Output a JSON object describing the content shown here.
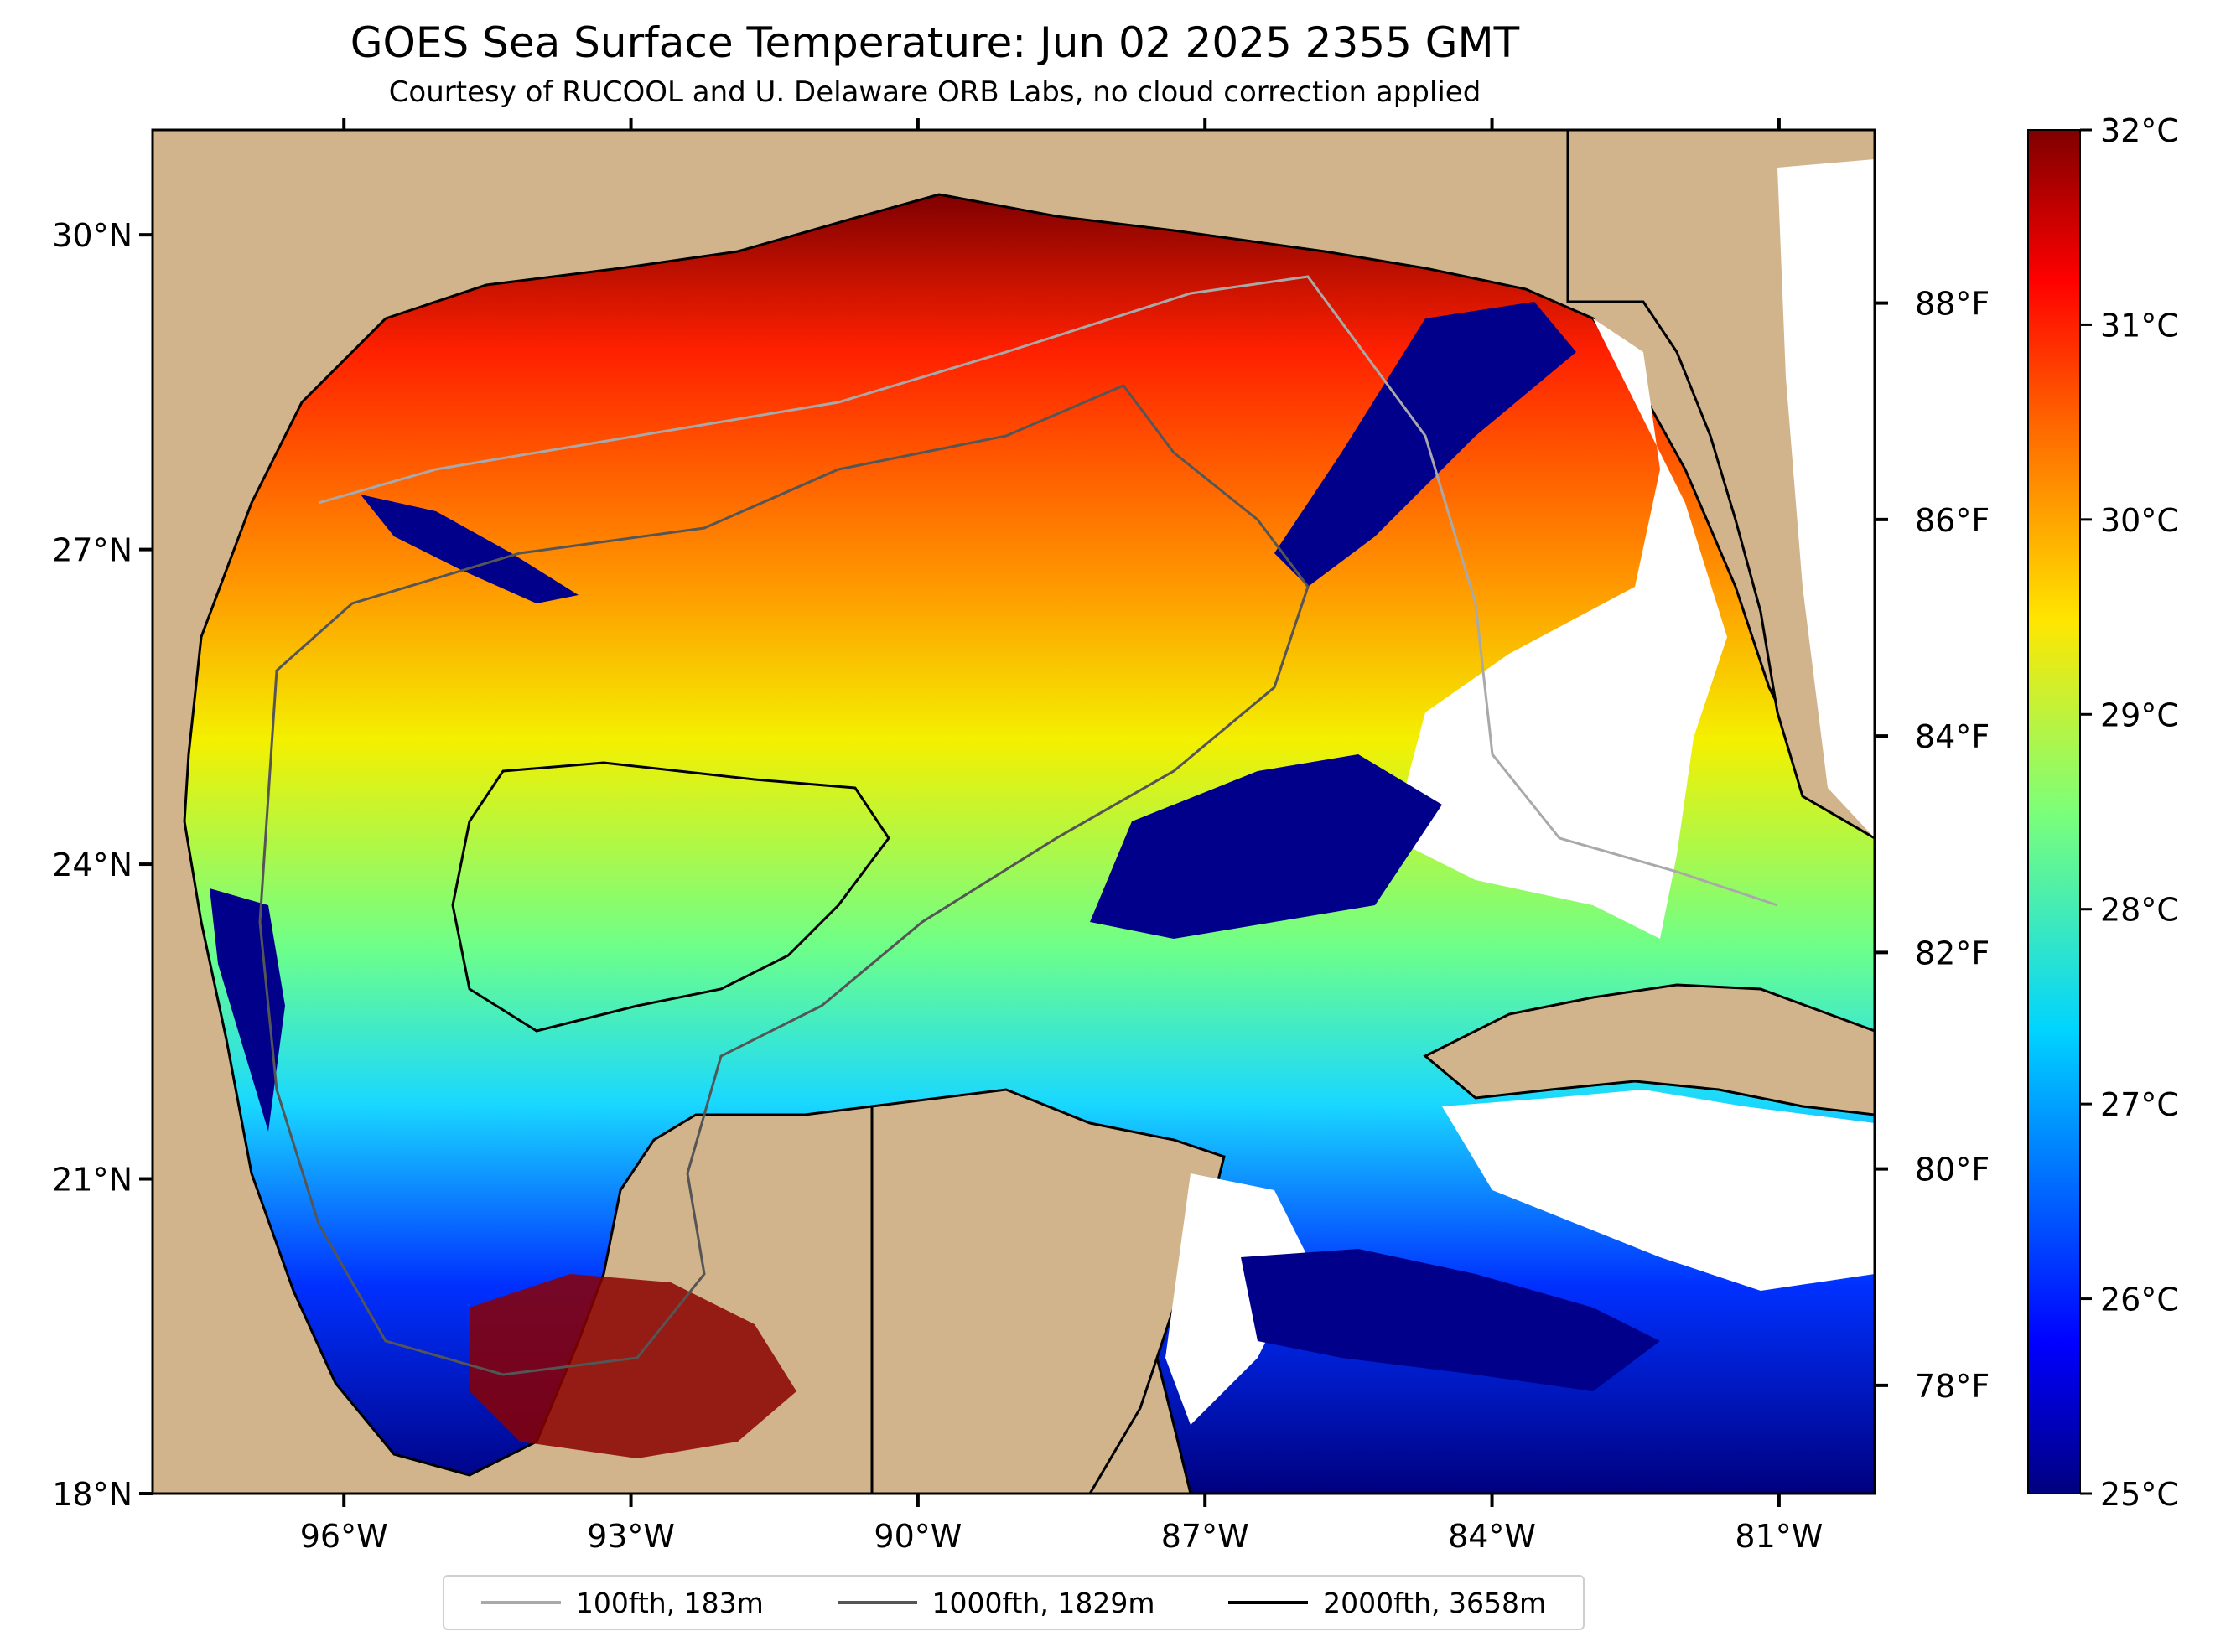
{
  "title": "GOES Sea Surface Temperature: Jun 02 2025 2355 GMT",
  "subtitle": "Courtesy of RUCOOL and U. Delaware ORB Labs, no cloud correction applied",
  "map": {
    "lon_range": [
      -98,
      -80
    ],
    "lat_range": [
      18,
      31
    ],
    "lat_ticks": [
      {
        "value": 30,
        "label": "30°N"
      },
      {
        "value": 27,
        "label": "27°N"
      },
      {
        "value": 24,
        "label": "24°N"
      },
      {
        "value": 21,
        "label": "21°N"
      },
      {
        "value": 18,
        "label": "18°N"
      }
    ],
    "lon_ticks": [
      {
        "value": -96,
        "label": "96°W"
      },
      {
        "value": -93,
        "label": "93°W"
      },
      {
        "value": -90,
        "label": "90°W"
      },
      {
        "value": -87,
        "label": "87°W"
      },
      {
        "value": -84,
        "label": "84°W"
      },
      {
        "value": -81,
        "label": "81°W"
      }
    ],
    "fahrenheit_ticks": [
      {
        "value": 88,
        "label": "88°F"
      },
      {
        "value": 86,
        "label": "86°F"
      },
      {
        "value": 84,
        "label": "84°F"
      },
      {
        "value": 82,
        "label": "82°F"
      },
      {
        "value": 80,
        "label": "80°F"
      },
      {
        "value": 78,
        "label": "78°F"
      }
    ],
    "colors": {
      "land": "#d2b48c",
      "cloud": "#ffffff",
      "cold": "#00008b",
      "warm": "#8b0000"
    }
  },
  "colorbar": {
    "min": 25,
    "max": 32,
    "ticks": [
      {
        "value": 32,
        "label": "32°C"
      },
      {
        "value": 31,
        "label": "31°C"
      },
      {
        "value": 30,
        "label": "30°C"
      },
      {
        "value": 29,
        "label": "29°C"
      },
      {
        "value": 28,
        "label": "28°C"
      },
      {
        "value": 27,
        "label": "27°C"
      },
      {
        "value": 26,
        "label": "26°C"
      },
      {
        "value": 25,
        "label": "25°C"
      }
    ],
    "colormap": "jet"
  },
  "legend": [
    {
      "label": "100fth, 183m",
      "color": "#a9a9a9"
    },
    {
      "label": "1000fth, 1829m",
      "color": "#555555"
    },
    {
      "label": "2000fth, 3658m",
      "color": "#000000"
    }
  ]
}
